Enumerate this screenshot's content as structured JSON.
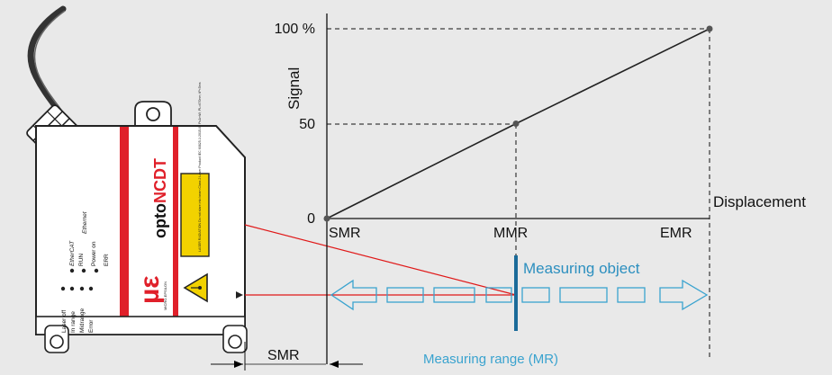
{
  "sensor": {
    "brand": "optoNCDT",
    "manufacturer_logo": "MICRO-EPSILON",
    "laser_label_text": "LASER RADIATION Do not stare into beam Class 2 Laser Product IEC 60825-1:2015-07 P≤1mW; PL=670nm; tP<5ms",
    "leds_left": [
      "Laser off",
      "In range",
      "Midrange",
      "Error"
    ],
    "leds_right": [
      "Power on",
      "RUN",
      "ERR"
    ],
    "bus_labels": [
      "EtherCAT",
      "Ethernet"
    ]
  },
  "chart": {
    "y_title": "Signal",
    "x_title": "Displacement",
    "y_ticks": [
      "100 %",
      "50",
      "0"
    ],
    "x_ticks": [
      "SMR",
      "MMR",
      "EMR"
    ]
  },
  "labels": {
    "object": "Measuring object",
    "range": "Measuring range (MR)",
    "smr_dim": "SMR"
  },
  "colors": {
    "background": "#e9e9e9",
    "sensor_red": "#e0202a",
    "laser_line": "#e01818",
    "object_blue": "#2c8fbf",
    "arrow_blue": "#3aa3cf",
    "label_yellow": "#f2d200"
  },
  "chart_data": {
    "type": "line",
    "x": [
      "SMR",
      "MMR",
      "EMR"
    ],
    "series": [
      {
        "values": [
          0,
          50,
          100
        ]
      }
    ],
    "ylim": [
      0,
      100
    ],
    "xlabel": "Displacement",
    "ylabel": "Signal",
    "grid": false
  }
}
